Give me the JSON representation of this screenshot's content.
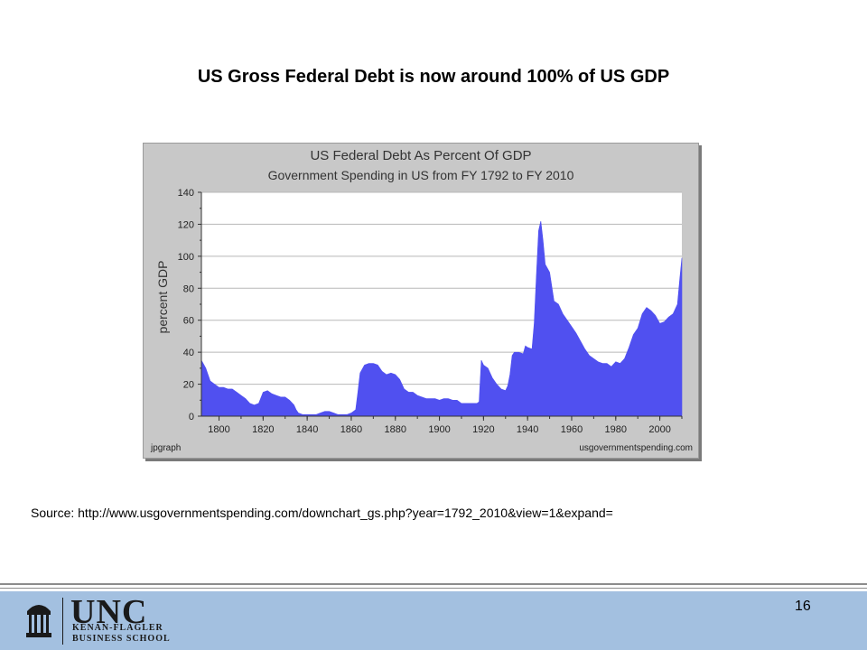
{
  "slide": {
    "title": "US Gross Federal Debt is now around 100% of US GDP",
    "source": "Source: http://www.usgovernmentspending.com/downchart_gs.php?year=1792_2010&view=1&expand=",
    "page_number": "16"
  },
  "footer": {
    "logo_line1": "UNC",
    "logo_line2": "KENAN-FLAGLER",
    "logo_line3": "BUSINESS SCHOOL",
    "band_color": "#a3c0e0"
  },
  "chart_data": {
    "type": "area",
    "title": "US Federal Debt As Percent Of GDP",
    "subtitle": "Government Spending in US from FY 1792 to FY 2010",
    "xlabel": "",
    "ylabel": "percent GDP",
    "xlim": [
      1792,
      2010
    ],
    "ylim": [
      0,
      140
    ],
    "xticks": [
      1800,
      1820,
      1840,
      1860,
      1880,
      1900,
      1920,
      1940,
      1960,
      1980,
      2000
    ],
    "yticks": [
      0,
      20,
      40,
      60,
      80,
      100,
      120,
      140
    ],
    "grid": true,
    "fill_color": "#5050f0",
    "credit_left": "jpgraph",
    "credit_right": "usgovernmentspending.com",
    "x": [
      1792,
      1794,
      1796,
      1798,
      1800,
      1802,
      1804,
      1806,
      1808,
      1810,
      1812,
      1814,
      1816,
      1818,
      1820,
      1822,
      1824,
      1826,
      1828,
      1830,
      1832,
      1834,
      1835,
      1836,
      1838,
      1840,
      1842,
      1844,
      1846,
      1848,
      1850,
      1852,
      1854,
      1856,
      1858,
      1860,
      1862,
      1863,
      1864,
      1866,
      1868,
      1870,
      1872,
      1874,
      1876,
      1878,
      1880,
      1882,
      1884,
      1886,
      1888,
      1890,
      1892,
      1894,
      1896,
      1898,
      1900,
      1902,
      1904,
      1906,
      1908,
      1910,
      1912,
      1914,
      1916,
      1917,
      1918,
      1919,
      1920,
      1922,
      1924,
      1926,
      1928,
      1930,
      1931,
      1932,
      1933,
      1934,
      1936,
      1938,
      1939,
      1940,
      1942,
      1943,
      1944,
      1945,
      1946,
      1947,
      1948,
      1950,
      1952,
      1954,
      1956,
      1958,
      1960,
      1962,
      1964,
      1966,
      1968,
      1970,
      1972,
      1974,
      1976,
      1978,
      1980,
      1982,
      1984,
      1986,
      1988,
      1990,
      1992,
      1994,
      1996,
      1998,
      2000,
      2002,
      2004,
      2006,
      2008,
      2009,
      2010
    ],
    "values": [
      35,
      30,
      22,
      20,
      18,
      18,
      17,
      17,
      15,
      13,
      11,
      8,
      7,
      8,
      15,
      16,
      14,
      13,
      12,
      12,
      10,
      7,
      4,
      2,
      1,
      1,
      1,
      1,
      2,
      3,
      3,
      2,
      1,
      1,
      1,
      2,
      4,
      15,
      27,
      32,
      33,
      33,
      32,
      28,
      26,
      27,
      26,
      23,
      17,
      15,
      15,
      13,
      12,
      11,
      11,
      11,
      10,
      11,
      11,
      10,
      10,
      8,
      8,
      8,
      8,
      8,
      9,
      35,
      32,
      30,
      24,
      20,
      17,
      16,
      19,
      26,
      38,
      40,
      40,
      39,
      44,
      43,
      42,
      58,
      88,
      116,
      122,
      110,
      95,
      90,
      72,
      70,
      64,
      60,
      56,
      52,
      47,
      42,
      38,
      36,
      34,
      33,
      33,
      31,
      34,
      33,
      36,
      43,
      51,
      55,
      64,
      68,
      66,
      63,
      58,
      59,
      62,
      64,
      70,
      85,
      99
    ]
  }
}
